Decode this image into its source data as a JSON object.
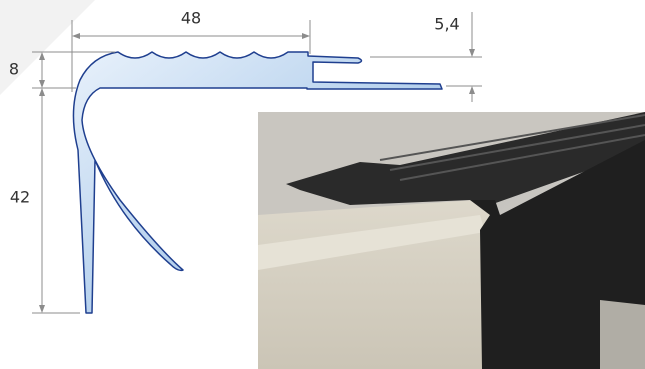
{
  "dimensions": {
    "width": "48",
    "lip": "5,4",
    "thickness": "8",
    "height": "42"
  }
}
